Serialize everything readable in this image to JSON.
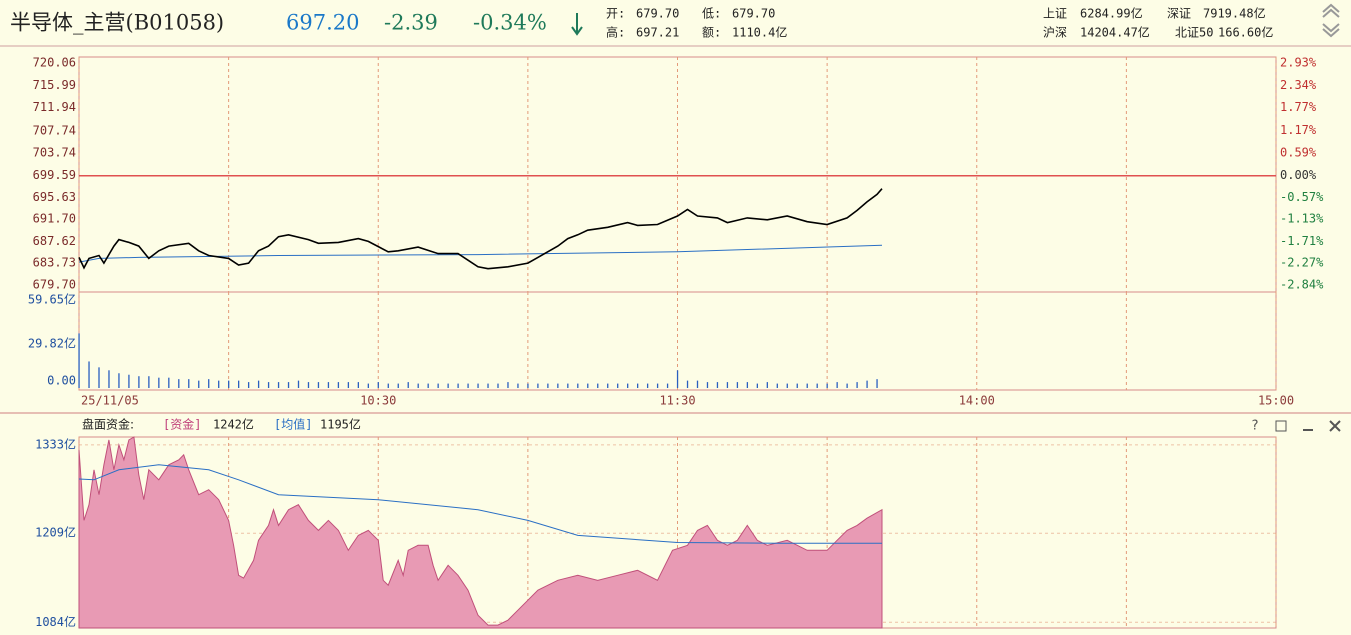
{
  "header": {
    "title": "半导体_主营(B01058)",
    "price": "697.20",
    "change": "-2.39",
    "change_pct": "-0.34%",
    "open_label": "开:",
    "open": "679.70",
    "low_label": "低:",
    "low": "679.70",
    "high_label": "高:",
    "high": "697.21",
    "amount_label": "额:",
    "amount": "1110.4亿",
    "indices": [
      {
        "name": "上证",
        "value": "6284.99亿"
      },
      {
        "name": "深证",
        "value": "7919.48亿"
      },
      {
        "name": "沪深",
        "value": "14204.47亿"
      },
      {
        "name": "北证50",
        "value": "166.60亿"
      }
    ]
  },
  "chart_data": [
    {
      "type": "line",
      "xlim": [
        0,
        240
      ],
      "xticks": [
        {
          "value": 0,
          "label": "25/11/05"
        },
        {
          "value": 60,
          "label": "10:30"
        },
        {
          "value": 120,
          "label": "11:30"
        },
        {
          "value": 180,
          "label": "14:00"
        },
        {
          "value": 240,
          "label": "15:00"
        }
      ],
      "xgrid": [
        30,
        90,
        150,
        210
      ],
      "ylim": [
        679.7,
        720.06
      ],
      "yticks": [
        {
          "value": 720.06,
          "label": "720.06"
        },
        {
          "value": 715.99,
          "label": "715.99"
        },
        {
          "value": 711.94,
          "label": "711.94"
        },
        {
          "value": 707.74,
          "label": "707.74"
        },
        {
          "value": 703.74,
          "label": "703.74"
        },
        {
          "value": 699.59,
          "label": "699.59"
        },
        {
          "value": 695.63,
          "label": "695.63"
        },
        {
          "value": 691.7,
          "label": "691.70"
        },
        {
          "value": 687.62,
          "label": "687.62"
        },
        {
          "value": 683.73,
          "label": "683.73"
        },
        {
          "value": 679.7,
          "label": "679.70"
        }
      ],
      "y2lim": [
        -2.84,
        2.93
      ],
      "y2ticks": [
        {
          "value": 2.93,
          "label": "2.93%"
        },
        {
          "value": 2.34,
          "label": "2.34%"
        },
        {
          "value": 1.77,
          "label": "1.77%"
        },
        {
          "value": 1.17,
          "label": "1.17%"
        },
        {
          "value": 0.59,
          "label": "0.59%"
        },
        {
          "value": 0,
          "label": "0.00%"
        },
        {
          "value": -0.57,
          "label": "-0.57%"
        },
        {
          "value": -1.13,
          "label": "-1.13%"
        },
        {
          "value": -1.71,
          "label": "-1.71%"
        },
        {
          "value": -2.27,
          "label": "-2.27%"
        },
        {
          "value": -2.84,
          "label": "-2.84%"
        }
      ],
      "grid": true,
      "series": [
        {
          "color": "#000000",
          "x": [
            0,
            1,
            2,
            4,
            5,
            7,
            8,
            10,
            12,
            14,
            16,
            18,
            22,
            24,
            26,
            30,
            32,
            34,
            36,
            38,
            40,
            42,
            46,
            48,
            52,
            56,
            58,
            62,
            64,
            68,
            72,
            76,
            78,
            80,
            82,
            86,
            90,
            92,
            96,
            98,
            100,
            102,
            106,
            110,
            112,
            116,
            120,
            122,
            124,
            128,
            130,
            134,
            138,
            142,
            146,
            150,
            154,
            156,
            158,
            160,
            161
          ],
          "values": [
            684.71,
            682.83,
            684.54,
            685.06,
            683.69,
            686.77,
            687.96,
            687.45,
            686.77,
            684.54,
            685.91,
            686.77,
            687.28,
            685.91,
            685.06,
            684.54,
            683.34,
            683.69,
            685.91,
            686.77,
            688.48,
            688.82,
            687.96,
            687.28,
            687.45,
            688.13,
            687.62,
            685.74,
            685.91,
            686.59,
            685.4,
            685.4,
            684.2,
            683.0,
            682.66,
            683.0,
            683.69,
            684.71,
            686.77,
            688.13,
            688.82,
            689.67,
            690.19,
            691.04,
            690.53,
            690.7,
            692.24,
            693.43,
            692.24,
            691.9,
            691.04,
            691.9,
            691.55,
            692.24,
            691.21,
            690.7,
            691.9,
            693.26,
            694.8,
            696.17,
            697.2
          ]
        },
        {
          "color": "#2a6fc4",
          "x": [
            0,
            4,
            12,
            40,
            80,
            120,
            161
          ],
          "values": [
            683.86,
            684.54,
            684.71,
            685.06,
            685.23,
            685.74,
            686.94
          ]
        }
      ]
    },
    {
      "type": "bar",
      "ylim": [
        0,
        59.65
      ],
      "yticks": [
        {
          "value": 0,
          "label": "0.00"
        },
        {
          "value": 29.82,
          "label": "29.82亿"
        },
        {
          "value": 59.65,
          "label": "59.65亿"
        }
      ],
      "color": "#2a5fc0",
      "x": [
        0,
        2,
        4,
        6,
        8,
        10,
        12,
        14,
        16,
        18,
        20,
        22,
        24,
        26,
        28,
        30,
        32,
        34,
        36,
        38,
        40,
        42,
        44,
        46,
        48,
        50,
        52,
        54,
        56,
        58,
        60,
        62,
        64,
        66,
        68,
        70,
        72,
        74,
        76,
        78,
        80,
        82,
        84,
        86,
        88,
        90,
        92,
        94,
        96,
        98,
        100,
        102,
        104,
        106,
        108,
        110,
        112,
        114,
        116,
        118,
        120,
        122,
        124,
        126,
        128,
        130,
        132,
        134,
        136,
        138,
        140,
        142,
        144,
        146,
        148,
        150,
        152,
        154,
        156,
        158,
        160
      ],
      "values": [
        37,
        18,
        14,
        12,
        10,
        9,
        8,
        8,
        7,
        7,
        6,
        6,
        5,
        6,
        5,
        5,
        5,
        4,
        5,
        4,
        4,
        4,
        5,
        4,
        4,
        4,
        4,
        4,
        4,
        3,
        4,
        3,
        3,
        4,
        3,
        3,
        3,
        3,
        3,
        3,
        3,
        3,
        3,
        4,
        3,
        3,
        3,
        3,
        3,
        3,
        3,
        3,
        3,
        3,
        3,
        3,
        3,
        3,
        3,
        3,
        12,
        5,
        5,
        4,
        4,
        4,
        4,
        4,
        3,
        4,
        3,
        3,
        3,
        3,
        3,
        3,
        4,
        3,
        4,
        5,
        6
      ]
    },
    {
      "type": "area",
      "title": "盘面资金:",
      "ylim": [
        1076,
        1344
      ],
      "yticks": [
        {
          "value": 1333,
          "label": "1333亿"
        },
        {
          "value": 1209,
          "label": "1209亿"
        },
        {
          "value": 1084,
          "label": "1084亿"
        }
      ],
      "series": [
        {
          "name": "[资金]",
          "legend_value": "1242亿",
          "color": "#e89ab4",
          "line_color": "#c0507a",
          "x": [
            0,
            1,
            2,
            3,
            4,
            5,
            6,
            7,
            8,
            9,
            10,
            11,
            12,
            13,
            14,
            16,
            18,
            20,
            21,
            22,
            24,
            26,
            28,
            30,
            31,
            32,
            33,
            35,
            36,
            38,
            39,
            40,
            42,
            44,
            46,
            48,
            50,
            52,
            54,
            56,
            58,
            60,
            61,
            62,
            64,
            65,
            66,
            68,
            70,
            71,
            72,
            74,
            76,
            78,
            80,
            82,
            84,
            86,
            88,
            90,
            92,
            96,
            100,
            104,
            108,
            112,
            116,
            119,
            122,
            124,
            126,
            128,
            130,
            132,
            134,
            136,
            138,
            142,
            146,
            150,
            152,
            154,
            156,
            158,
            161
          ],
          "values": [
            1326,
            1227,
            1249,
            1298,
            1263,
            1305,
            1340,
            1298,
            1333,
            1312,
            1340,
            1344,
            1291,
            1256,
            1298,
            1284,
            1305,
            1312,
            1319,
            1298,
            1263,
            1270,
            1256,
            1227,
            1192,
            1150,
            1146,
            1171,
            1199,
            1220,
            1242,
            1220,
            1242,
            1249,
            1227,
            1213,
            1227,
            1213,
            1185,
            1206,
            1213,
            1199,
            1143,
            1136,
            1171,
            1150,
            1185,
            1192,
            1192,
            1164,
            1143,
            1164,
            1150,
            1129,
            1094,
            1080,
            1080,
            1087,
            1101,
            1115,
            1129,
            1143,
            1150,
            1143,
            1150,
            1157,
            1143,
            1185,
            1192,
            1213,
            1220,
            1199,
            1192,
            1199,
            1220,
            1199,
            1192,
            1199,
            1185,
            1185,
            1199,
            1213,
            1220,
            1230,
            1242
          ]
        },
        {
          "name": "[均值]",
          "legend_value": "1195亿",
          "color": "#2a6fc4",
          "x": [
            0,
            3,
            8,
            16,
            26,
            32,
            40,
            60,
            80,
            90,
            100,
            120,
            140,
            161
          ],
          "values": [
            1285,
            1284,
            1298,
            1305,
            1298,
            1284,
            1263,
            1256,
            1242,
            1227,
            1206,
            1196,
            1195,
            1195
          ]
        }
      ]
    }
  ]
}
